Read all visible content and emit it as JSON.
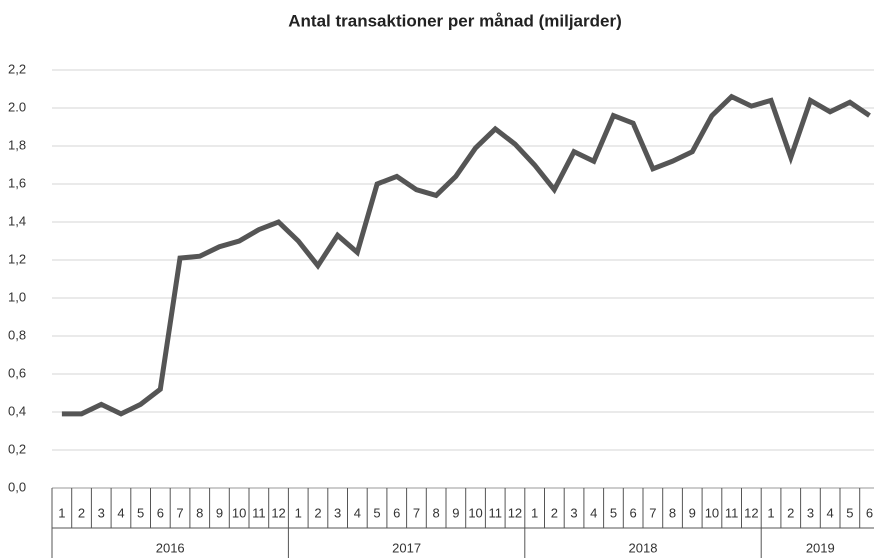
{
  "chart_data": {
    "type": "line",
    "title": "Antal transaktioner per månad (miljarder)",
    "categories": [
      "1",
      "2",
      "3",
      "4",
      "5",
      "6",
      "7",
      "8",
      "9",
      "10",
      "11",
      "12",
      "1",
      "2",
      "3",
      "4",
      "5",
      "6",
      "7",
      "8",
      "9",
      "10",
      "11",
      "12",
      "1",
      "2",
      "3",
      "4",
      "5",
      "6",
      "7",
      "8",
      "9",
      "10",
      "11",
      "12",
      "1",
      "2",
      "3",
      "4",
      "5",
      "6"
    ],
    "year_labels": [
      "2016",
      "2017",
      "2018",
      "2019"
    ],
    "series": [
      {
        "name": "Antal transaktioner",
        "color": "#555555",
        "values": [
          0.39,
          0.39,
          0.44,
          0.39,
          0.44,
          0.52,
          1.21,
          1.22,
          1.27,
          1.3,
          1.36,
          1.4,
          1.3,
          1.17,
          1.33,
          1.24,
          1.6,
          1.64,
          1.57,
          1.54,
          1.64,
          1.79,
          1.89,
          1.81,
          1.7,
          1.57,
          1.77,
          1.72,
          1.96,
          1.92,
          1.68,
          1.72,
          1.77,
          1.96,
          2.06,
          2.01,
          2.04,
          1.74,
          2.04,
          1.98,
          2.03,
          1.96
        ]
      }
    ],
    "ylim": [
      0,
      2.2
    ],
    "yticks": [
      {
        "value": 0,
        "label": "0,0"
      },
      {
        "value": 0.2,
        "label": "0,2"
      },
      {
        "value": 0.4,
        "label": "0,4"
      },
      {
        "value": 0.6,
        "label": "0,6"
      },
      {
        "value": 0.8,
        "label": "0,8"
      },
      {
        "value": 1.0,
        "label": "1,0"
      },
      {
        "value": 1.2,
        "label": "1,2"
      },
      {
        "value": 1.4,
        "label": "1,4"
      },
      {
        "value": 1.6,
        "label": "1,6"
      },
      {
        "value": 1.8,
        "label": "1,8"
      },
      {
        "value": 2.0,
        "label": "2.0"
      },
      {
        "value": 2.2,
        "label": "2,2"
      }
    ],
    "grid": true
  }
}
